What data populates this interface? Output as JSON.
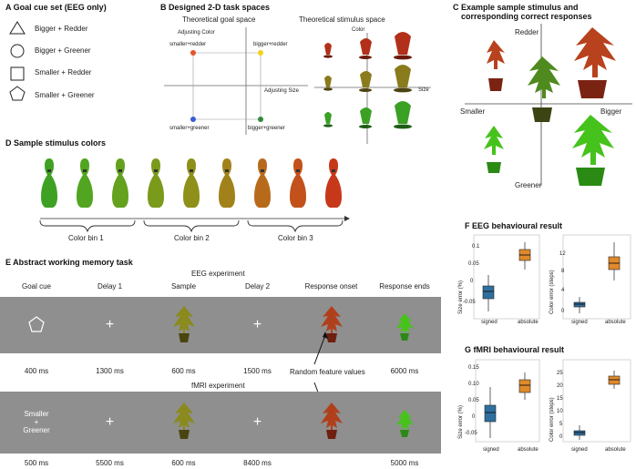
{
  "panelA": {
    "title": "A Goal cue set (EEG only)",
    "items": [
      {
        "shape": "triangle-icon",
        "label": "Bigger + Redder"
      },
      {
        "shape": "circle-icon",
        "label": "Bigger + Greener"
      },
      {
        "shape": "square-icon",
        "label": "Smaller + Redder"
      },
      {
        "shape": "pentagon-icon",
        "label": "Smaller + Greener"
      }
    ]
  },
  "panelB": {
    "title": "B Designed 2-D task spaces",
    "goal_space_title": "Theoretical goal space",
    "stimulus_space_title": "Theoretical stimulus space",
    "adjusting_color": "Adjusting Color",
    "adjusting_size": "Adjusting Size",
    "corners": {
      "tl": "smaller+redder",
      "tr": "bigger+redder",
      "bl": "smaller+greener",
      "br": "bigger+greener"
    },
    "corner_colors": {
      "tl": "#e8522a",
      "tr": "#f2d21b",
      "bl": "#3a5bd9",
      "br": "#2e8b3a"
    },
    "color_axis": "Color",
    "size_axis": "Size"
  },
  "panelC": {
    "title": "C Example sample stimulus and",
    "title2": "corresponding correct responses",
    "redder": "Redder",
    "smaller": "Smaller",
    "bigger": "Bigger",
    "greener": "Greener"
  },
  "panelD": {
    "title": "D Sample stimulus colors",
    "pin_colors": [
      "#3fa123",
      "#52a520",
      "#63a11e",
      "#7a9a1c",
      "#8e901a",
      "#a1821a",
      "#b86a1b",
      "#c2511b",
      "#c7381b"
    ],
    "bins": [
      "Color bin 1",
      "Color bin 2",
      "Color bin 3"
    ]
  },
  "panelE": {
    "title": "E Abstract working memory task",
    "eeg_label": "EEG experiment",
    "fmri_label": "fMRI experiment",
    "headers": [
      "Goal cue",
      "Delay 1",
      "Sample",
      "Delay 2",
      "Response onset",
      "Response ends"
    ],
    "eeg_times": [
      "400 ms",
      "1300 ms",
      "600 ms",
      "1500 ms",
      "6000 ms"
    ],
    "fmri_times": [
      "500 ms",
      "5500 ms",
      "600 ms",
      "8400 ms",
      "5000 ms"
    ],
    "fixation": "+",
    "fmri_cue_line1": "Smaller",
    "fmri_cue_line2": "+",
    "fmri_cue_line3": "Greener",
    "random_feature": "Random feature values"
  },
  "panelF": {
    "title": "F EEG behavioural result",
    "left": {
      "ylabel": "Size error (%)",
      "ticks": [
        "0.1",
        "0.05",
        "0",
        "-0.05"
      ],
      "cats": [
        "signed",
        "absolute"
      ]
    },
    "right": {
      "ylabel": "Color error (steps)",
      "ticks": [
        "12",
        "8",
        "4",
        "0"
      ],
      "cats": [
        "signed",
        "absolute"
      ]
    }
  },
  "panelG": {
    "title": "G fMRI behavioural result",
    "left": {
      "ylabel": "Size error (%)",
      "ticks": [
        "0.15",
        "0.10",
        "0.05",
        "0",
        "-0.05"
      ],
      "cats": [
        "signed",
        "absolute"
      ]
    },
    "right": {
      "ylabel": "Color error (steps)",
      "ticks": [
        "25",
        "20",
        "15",
        "10",
        "5",
        "0"
      ],
      "cats": [
        "signed",
        "absolute"
      ]
    }
  },
  "colors": {
    "signed": "#2f6f9f",
    "absolute": "#e08a2c",
    "panel_gray": "#8f8f8f"
  }
}
